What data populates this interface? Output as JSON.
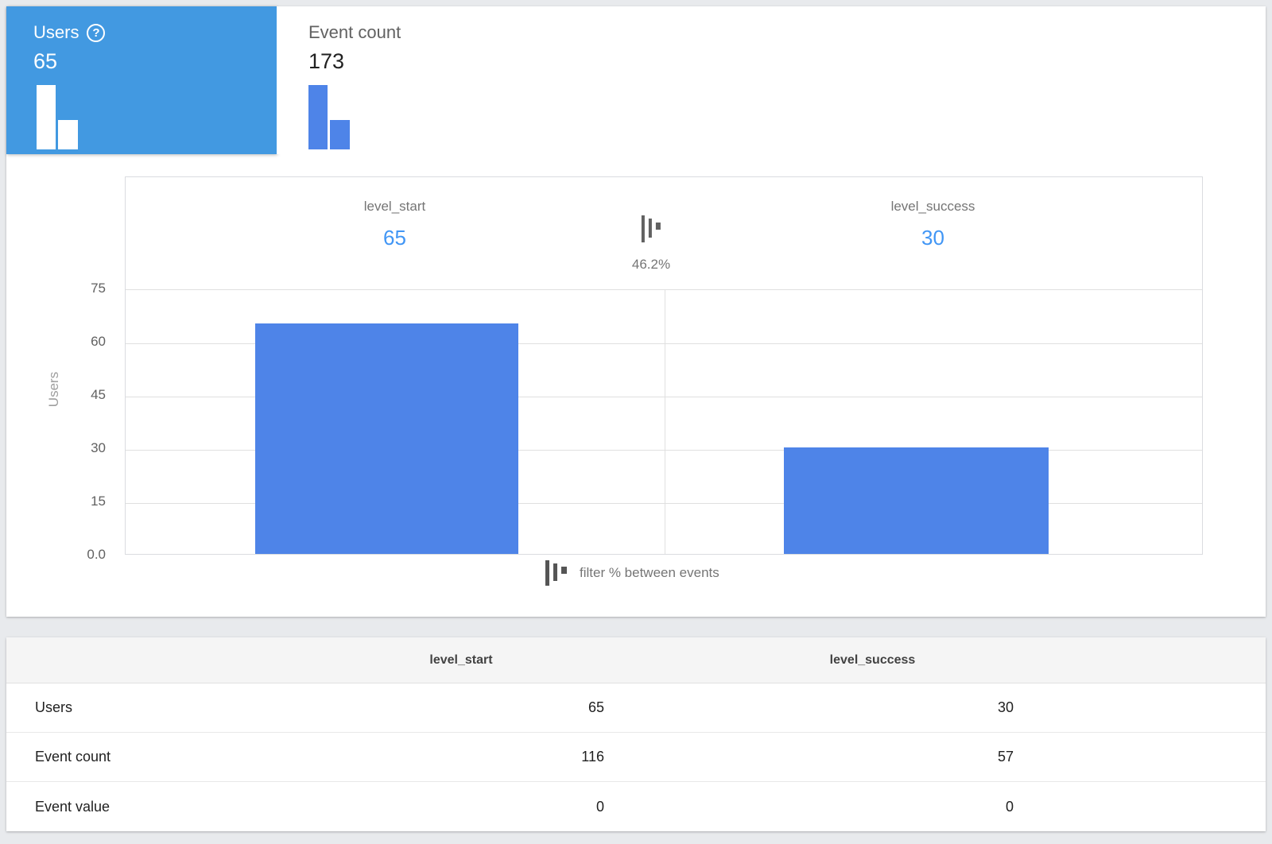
{
  "colors": {
    "page_bg": "#E8EAED",
    "tab_selected_bg": "#4299E1",
    "bar_blue": "#4E84E8",
    "value_blue": "#4196F5",
    "muted_text": "#757575",
    "grid_line": "#E0E0E0"
  },
  "icons": {
    "help_glyph": "?"
  },
  "metric_tabs": [
    {
      "label": "Users",
      "value": "65",
      "selected": true
    },
    {
      "label": "Event count",
      "value": "173",
      "selected": false
    }
  ],
  "chart": {
    "columns": [
      {
        "event": "level_start",
        "value": "65"
      },
      {
        "event": "level_success",
        "value": "30"
      }
    ],
    "transition_pct": "46.2%",
    "y_axis_label": "Users",
    "y_ticks": [
      "75",
      "60",
      "45",
      "30",
      "15",
      "0.0"
    ],
    "legend": "filter % between events"
  },
  "chart_data": {
    "type": "bar",
    "categories": [
      "level_start",
      "level_success"
    ],
    "values": [
      65,
      30
    ],
    "title": "",
    "xlabel": "",
    "ylabel": "Users",
    "ylim": [
      0,
      75
    ],
    "grid": true,
    "annotations": [
      "46.2%"
    ]
  },
  "table": {
    "columns": [
      "level_start",
      "level_success"
    ],
    "rows": [
      {
        "label": "Users",
        "values": [
          "65",
          "30"
        ]
      },
      {
        "label": "Event count",
        "values": [
          "116",
          "57"
        ]
      },
      {
        "label": "Event value",
        "values": [
          "0",
          "0"
        ]
      }
    ]
  }
}
